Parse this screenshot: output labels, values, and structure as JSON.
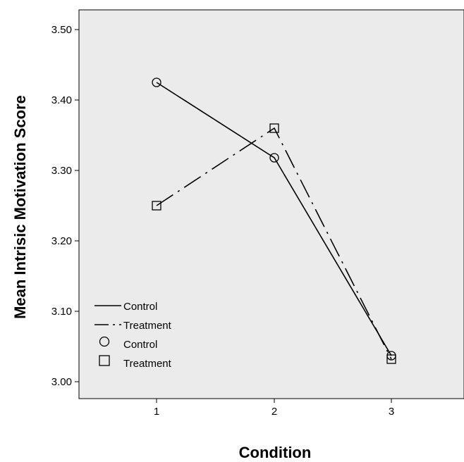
{
  "chart_data": {
    "type": "line",
    "xlabel": "Condition",
    "ylabel": "Mean Intrisic Motivation Score",
    "categories": [
      "1",
      "2",
      "3"
    ],
    "x": [
      1,
      2,
      3
    ],
    "ylim": [
      2.97,
      3.53
    ],
    "yticks": [
      3.0,
      3.1,
      3.2,
      3.3,
      3.4,
      3.5
    ],
    "ytick_labels": [
      "3.00",
      "3.10",
      "3.20",
      "3.30",
      "3.40",
      "3.50"
    ],
    "grid": false,
    "legend_position": "bottom-left",
    "legend": [
      {
        "label": "Control",
        "kind": "line",
        "style": "solid"
      },
      {
        "label": "Treatment",
        "kind": "line",
        "style": "dash-dot"
      },
      {
        "label": "Control",
        "kind": "marker",
        "marker": "circle"
      },
      {
        "label": "Treatment",
        "kind": "marker",
        "marker": "square"
      }
    ],
    "series": [
      {
        "name": "Control",
        "values": [
          3.425,
          3.318,
          3.037
        ],
        "line_style": "solid",
        "marker": "circle"
      },
      {
        "name": "Treatment",
        "values": [
          3.25,
          3.36,
          3.032
        ],
        "line_style": "dash-dot",
        "marker": "square"
      }
    ],
    "colors": {
      "plot_background": "#ebebeb",
      "line": "#000000",
      "frame": "#000000"
    }
  }
}
